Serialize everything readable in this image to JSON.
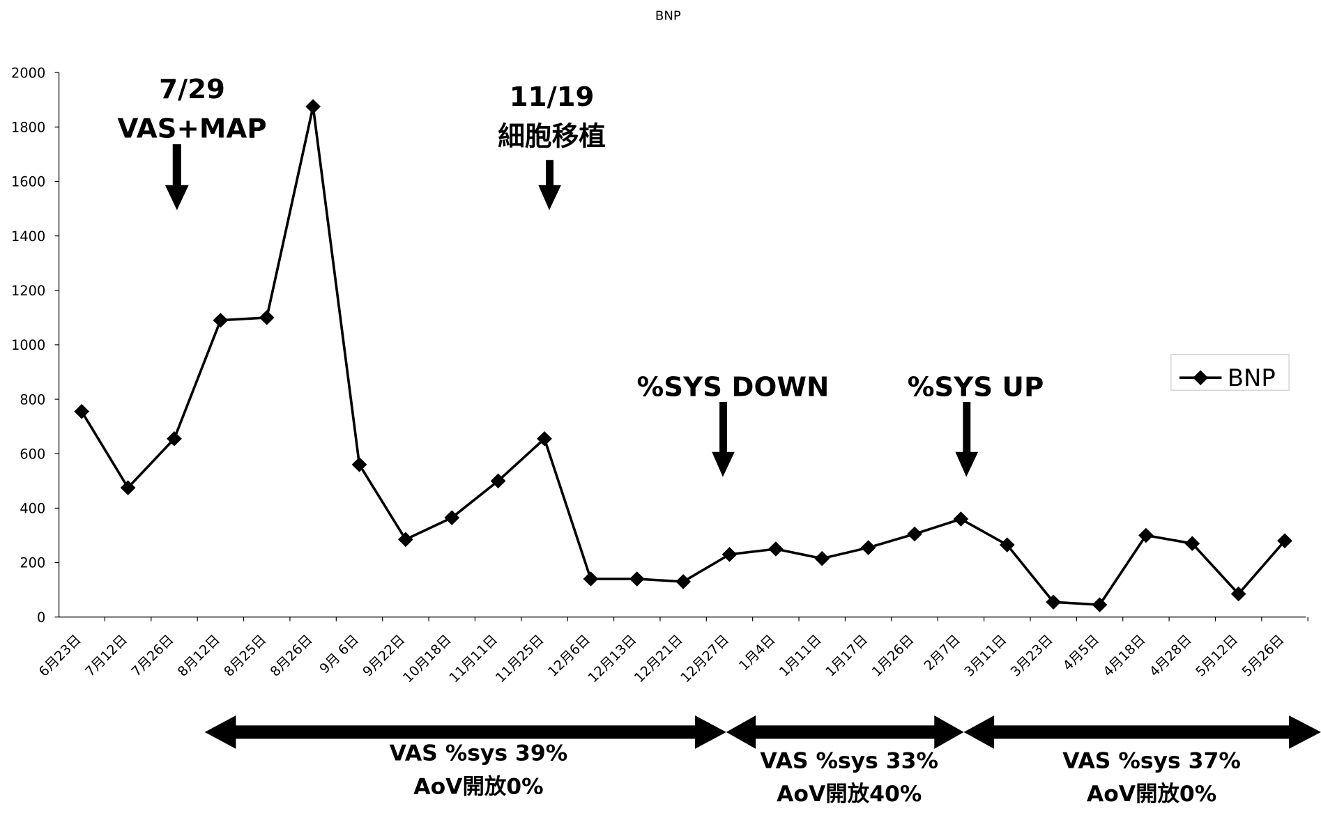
{
  "chart_data": {
    "type": "line",
    "title": "BNP",
    "categories": [
      "6月23日",
      "7月12日",
      "7月26日",
      "8月12日",
      "8月25日",
      "8月26日",
      "9月 6日",
      "9月22日",
      "10月18日",
      "11月11日",
      "11月25日",
      "12月6日",
      "12月13日",
      "12月21日",
      "12月27日",
      "1月4日",
      "1月11日",
      "1月17日",
      "1月26日",
      "2月7日",
      "3月11日",
      "3月23日",
      "4月5日",
      "4月18日",
      "4月28日",
      "5月12日",
      "5月26日"
    ],
    "series": [
      {
        "name": "BNP",
        "color": "#000000",
        "values": [
          755,
          475,
          655,
          1090,
          1100,
          1875,
          560,
          285,
          365,
          500,
          655,
          140,
          140,
          130,
          230,
          250,
          215,
          255,
          305,
          360,
          265,
          55,
          45,
          300,
          270,
          85,
          280
        ]
      }
    ],
    "ylim": [
      0,
      2000
    ],
    "yticks": [
      0,
      200,
      400,
      600,
      800,
      1000,
      1200,
      1400,
      1600,
      1800,
      2000
    ],
    "legend": "right",
    "annotations": [
      "7/29",
      "VAS+MAP",
      "11/19",
      "細胞移植",
      "%SYS DOWN",
      "%SYS UP"
    ],
    "periods": [
      {
        "label": "VAS %sys 39%",
        "sub": "AoV開放0%"
      },
      {
        "label": "VAS %sys 33%",
        "sub": "AoV開放40%"
      },
      {
        "label": "VAS %sys 37%",
        "sub": "AoV開放0%"
      }
    ]
  }
}
